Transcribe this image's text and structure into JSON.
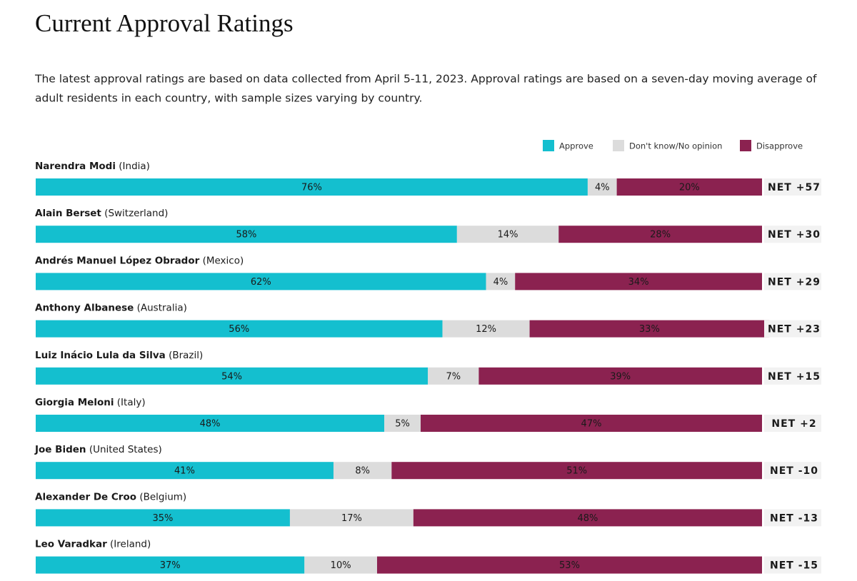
{
  "chart_data": {
    "type": "stacked-bar",
    "title": "Current Approval Ratings",
    "subtitle": [
      "The latest approval ratings are based on data collected from April 5-11, 2023. Approval ratings are based on a seven-day moving average of",
      "adult residents in each country, with sample sizes varying by country."
    ],
    "categories": [
      "Narendra Modi",
      "Alain Berset",
      "Andrés Manuel López Obrador",
      "Anthony Albanese",
      "Luiz Inácio Lula da Silva",
      "Giorgia Meloni",
      "Joe Biden",
      "Alexander De Croo",
      "Leo Varadkar"
    ],
    "countries": [
      "(India)",
      "(Switzerland)",
      "(Mexico)",
      "(Australia)",
      "(Brazil)",
      "(Italy)",
      "(United States)",
      "(Belgium)",
      "(Ireland)"
    ],
    "xlim": [
      0,
      100
    ],
    "series": [
      {
        "name": "Approve",
        "color": "#14bfcf",
        "values": [
          76,
          58,
          62,
          56,
          54,
          48,
          41,
          35,
          37
        ],
        "value_labels": [
          "76%",
          "58%",
          "62%",
          "56%",
          "54%",
          "48%",
          "41%",
          "35%",
          "37%"
        ]
      },
      {
        "name": "Don't know/No opinion",
        "color": "#dcdcdc",
        "values": [
          4,
          14,
          4,
          12,
          7,
          5,
          8,
          17,
          10
        ],
        "value_labels": [
          "4%",
          "14%",
          "4%",
          "12%",
          "7%",
          "5%",
          "8%",
          "17%",
          "10%"
        ]
      },
      {
        "name": "Disapprove",
        "color": "#8b2250",
        "values": [
          20,
          28,
          34,
          33,
          39,
          47,
          51,
          48,
          53
        ],
        "value_labels": [
          "20%",
          "28%",
          "34%",
          "33%",
          "39%",
          "47%",
          "51%",
          "48%",
          "53%"
        ]
      }
    ],
    "net": {
      "values": [
        57,
        30,
        29,
        23,
        15,
        2,
        -10,
        -13,
        -15
      ],
      "value_labels": [
        "NET +57",
        "NET +30",
        "NET +29",
        "NET +23",
        "NET +15",
        "NET +2",
        "NET -10",
        "NET -13",
        "NET -15"
      ]
    }
  }
}
